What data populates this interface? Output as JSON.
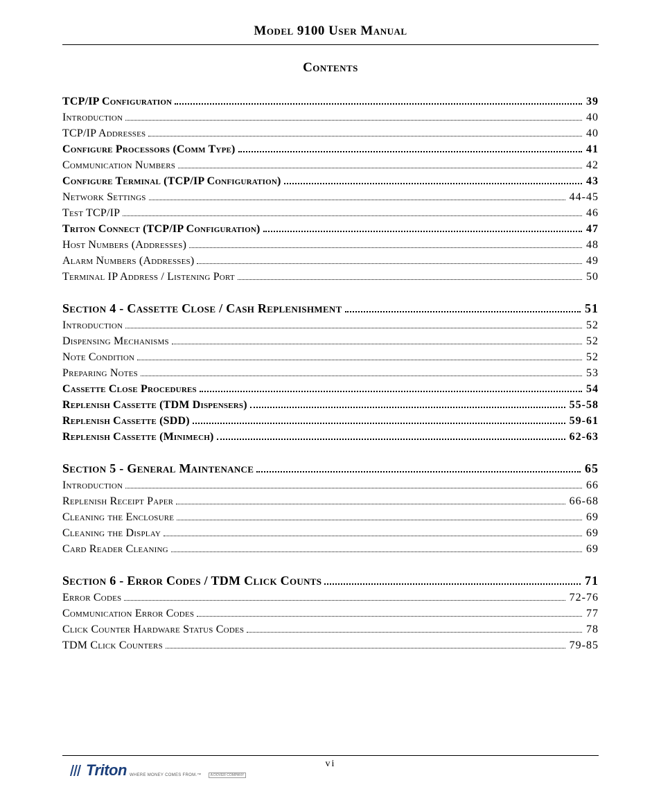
{
  "doc_title": "Model 9100 User Manual",
  "contents_heading": "Contents",
  "page_number": "vi",
  "logo": {
    "brand": "Triton",
    "tagline": "WHERE MONEY COMES FROM.™",
    "parent": "A DOVER COMPANY",
    "color": "#1a3e7a"
  },
  "toc_groups": [
    {
      "entries": [
        {
          "label": "TCP/IP Configuration",
          "page": "39",
          "style": "bold"
        },
        {
          "label": "Introduction",
          "page": "40",
          "style": "plain"
        },
        {
          "label": "TCP/IP Addresses",
          "page": "40",
          "style": "plain"
        },
        {
          "label": "Configure Processors (Comm Type)",
          "page": "41",
          "style": "bold"
        },
        {
          "label": "Communication Numbers",
          "page": "42",
          "style": "plain"
        },
        {
          "label": "Configure Terminal (TCP/IP Configuration)",
          "page": "43",
          "style": "bold"
        },
        {
          "label": "Network Settings",
          "page": "44-45",
          "style": "plain"
        },
        {
          "label": "Test TCP/IP",
          "page": "46",
          "style": "plain"
        },
        {
          "label": "Triton Connect (TCP/IP Configuration)",
          "page": "47",
          "style": "bold"
        },
        {
          "label": "Host Numbers (Addresses)",
          "page": "48",
          "style": "plain"
        },
        {
          "label": "Alarm Numbers (Addresses)",
          "page": "49",
          "style": "plain"
        },
        {
          "label": "Terminal IP Address / Listening Port",
          "page": "50",
          "style": "plain"
        }
      ]
    },
    {
      "entries": [
        {
          "label": "Section 4 - Cassette Close / Cash Replenishment",
          "page": "51",
          "style": "section"
        },
        {
          "label": "Introduction",
          "page": "52",
          "style": "plain"
        },
        {
          "label": "Dispensing Mechanisms",
          "page": "52",
          "style": "plain"
        },
        {
          "label": "Note Condition",
          "page": "52",
          "style": "plain"
        },
        {
          "label": "Preparing Notes",
          "page": "53",
          "style": "plain"
        },
        {
          "label": "Cassette Close Procedures",
          "page": "54",
          "style": "bold"
        },
        {
          "label": "Replenish Cassette (TDM Dispensers)",
          "page": "55-58",
          "style": "bold"
        },
        {
          "label": "Replenish Cassette (SDD)",
          "page": "59-61",
          "style": "bold"
        },
        {
          "label": "Replenish Cassette (Minimech)",
          "page": "62-63",
          "style": "bold"
        }
      ]
    },
    {
      "entries": [
        {
          "label": "Section 5 - General Maintenance",
          "page": "65",
          "style": "section"
        },
        {
          "label": "Introduction",
          "page": "66",
          "style": "plain"
        },
        {
          "label": "Replenish Receipt Paper",
          "page": "66-68",
          "style": "plain"
        },
        {
          "label": "Cleaning the Enclosure",
          "page": "69",
          "style": "plain"
        },
        {
          "label": "Cleaning the Display",
          "page": "69",
          "style": "plain"
        },
        {
          "label": "Card Reader Cleaning",
          "page": "69",
          "style": "plain"
        }
      ]
    },
    {
      "entries": [
        {
          "label": "Section 6 - Error Codes / TDM Click Counts",
          "page": "71",
          "style": "section"
        },
        {
          "label": "Error Codes",
          "page": "72-76",
          "style": "plain"
        },
        {
          "label": "Communication Error Codes",
          "page": "77",
          "style": "plain"
        },
        {
          "label": "Click Counter Hardware Status Codes",
          "page": "78",
          "style": "plain"
        },
        {
          "label": "TDM Click Counters",
          "page": "79-85",
          "style": "plain"
        }
      ]
    }
  ]
}
